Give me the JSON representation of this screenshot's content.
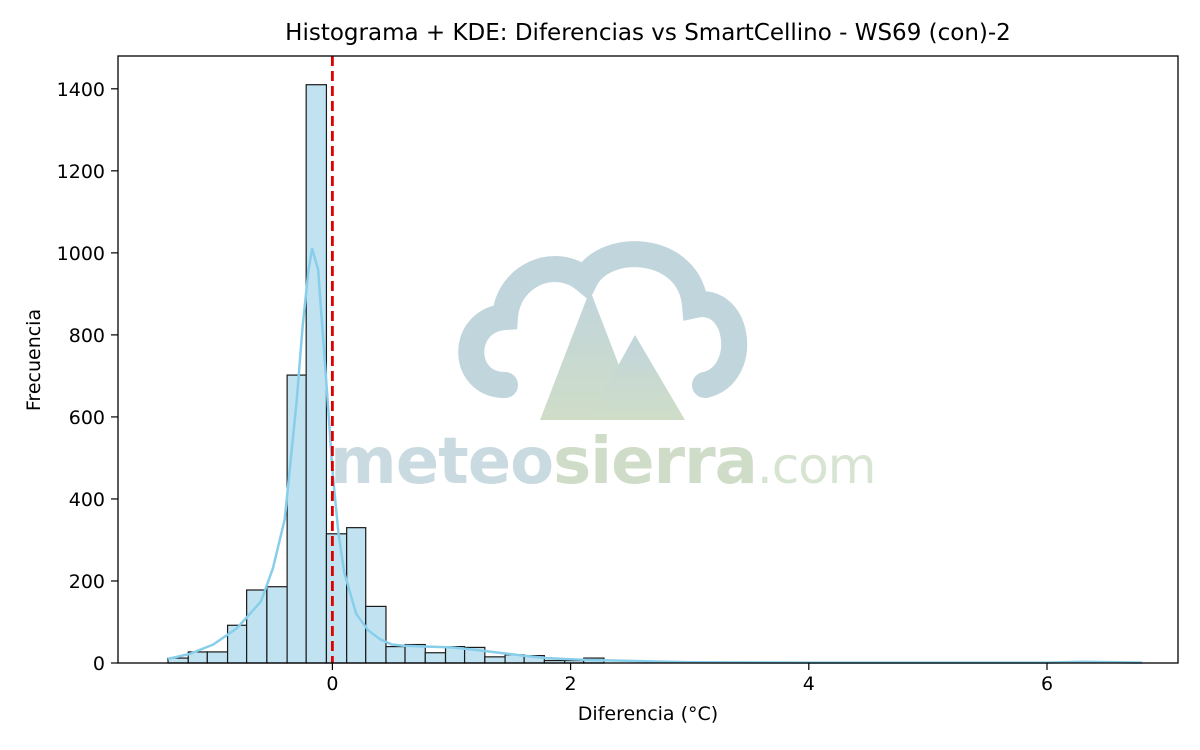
{
  "chart_data": {
    "type": "bar",
    "title": "Histograma + KDE: Diferencias vs SmartCellino - WS69 (con)-2",
    "xlabel": "Diferencia (°C)",
    "ylabel": "Frecuencia",
    "xlim": [
      -1.8,
      7.1
    ],
    "ylim": [
      0,
      1480
    ],
    "xticks": [
      0,
      2,
      4,
      6
    ],
    "yticks": [
      0,
      200,
      400,
      600,
      800,
      1000,
      1200,
      1400
    ],
    "bin_edges": [
      -1.38,
      -1.21,
      -1.05,
      -0.88,
      -0.72,
      -0.55,
      -0.38,
      -0.22,
      -0.05,
      0.12,
      0.28,
      0.45,
      0.61,
      0.78,
      0.95,
      1.11,
      1.28,
      1.45,
      1.61,
      1.78,
      1.95,
      2.11,
      2.28
    ],
    "counts": [
      12,
      27,
      27,
      92,
      178,
      186,
      702,
      1410,
      315,
      330,
      138,
      40,
      45,
      25,
      40,
      38,
      15,
      20,
      18,
      6,
      6,
      12
    ],
    "kde": {
      "x": [
        -1.38,
        -1.2,
        -1.0,
        -0.8,
        -0.6,
        -0.5,
        -0.4,
        -0.3,
        -0.25,
        -0.2,
        -0.17,
        -0.12,
        -0.08,
        -0.03,
        0.0,
        0.05,
        0.1,
        0.2,
        0.3,
        0.4,
        0.5,
        0.6,
        0.8,
        1.0,
        1.2,
        1.4,
        1.6,
        1.8,
        2.0,
        2.2,
        2.5,
        3.0,
        4.0,
        5.0,
        6.0,
        6.3,
        6.8
      ],
      "y": [
        10,
        22,
        45,
        85,
        150,
        230,
        350,
        640,
        820,
        960,
        1010,
        960,
        800,
        600,
        470,
        320,
        220,
        120,
        80,
        58,
        45,
        42,
        40,
        38,
        32,
        25,
        18,
        12,
        9,
        7,
        5,
        2,
        1,
        1,
        1,
        3,
        1
      ]
    },
    "reference_line": {
      "x": 0,
      "color": "#e00000",
      "style": "dashed"
    },
    "colors": {
      "bar_fill": "#c1e3f1",
      "bar_edge": "#1a1a1a",
      "kde": "#87ceeb"
    }
  },
  "watermark": {
    "part1": "meteo",
    "part2": "sierra",
    "part3": ".com"
  }
}
